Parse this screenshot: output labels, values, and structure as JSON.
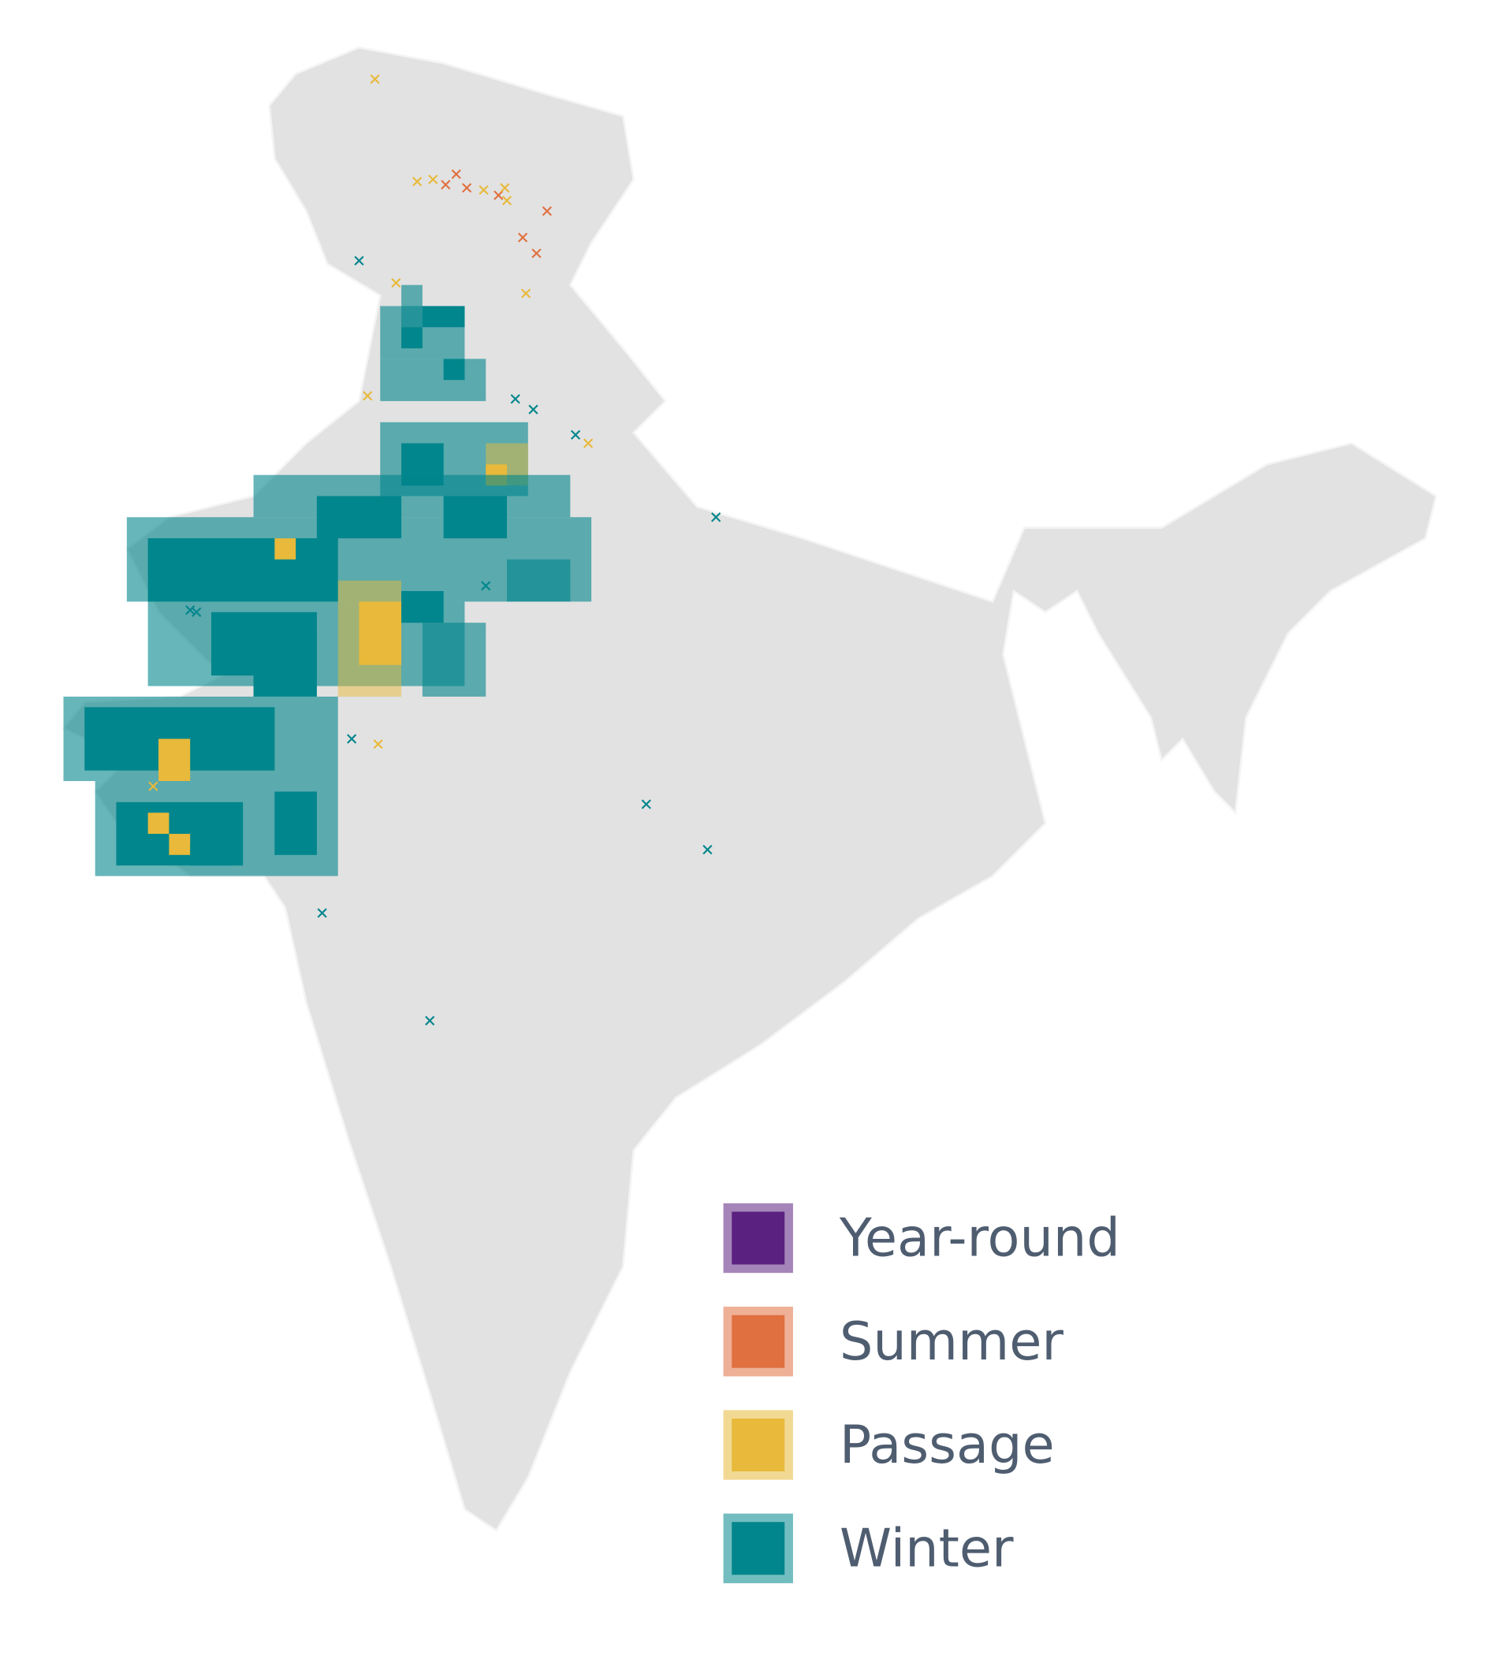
{
  "legend": {
    "items": [
      {
        "label": "Year-round",
        "color": "#5b2180"
      },
      {
        "label": "Summer",
        "color": "#e07040"
      },
      {
        "label": "Passage",
        "color": "#e8b93a"
      },
      {
        "label": "Winter",
        "color": "#00868c"
      }
    ]
  }
}
